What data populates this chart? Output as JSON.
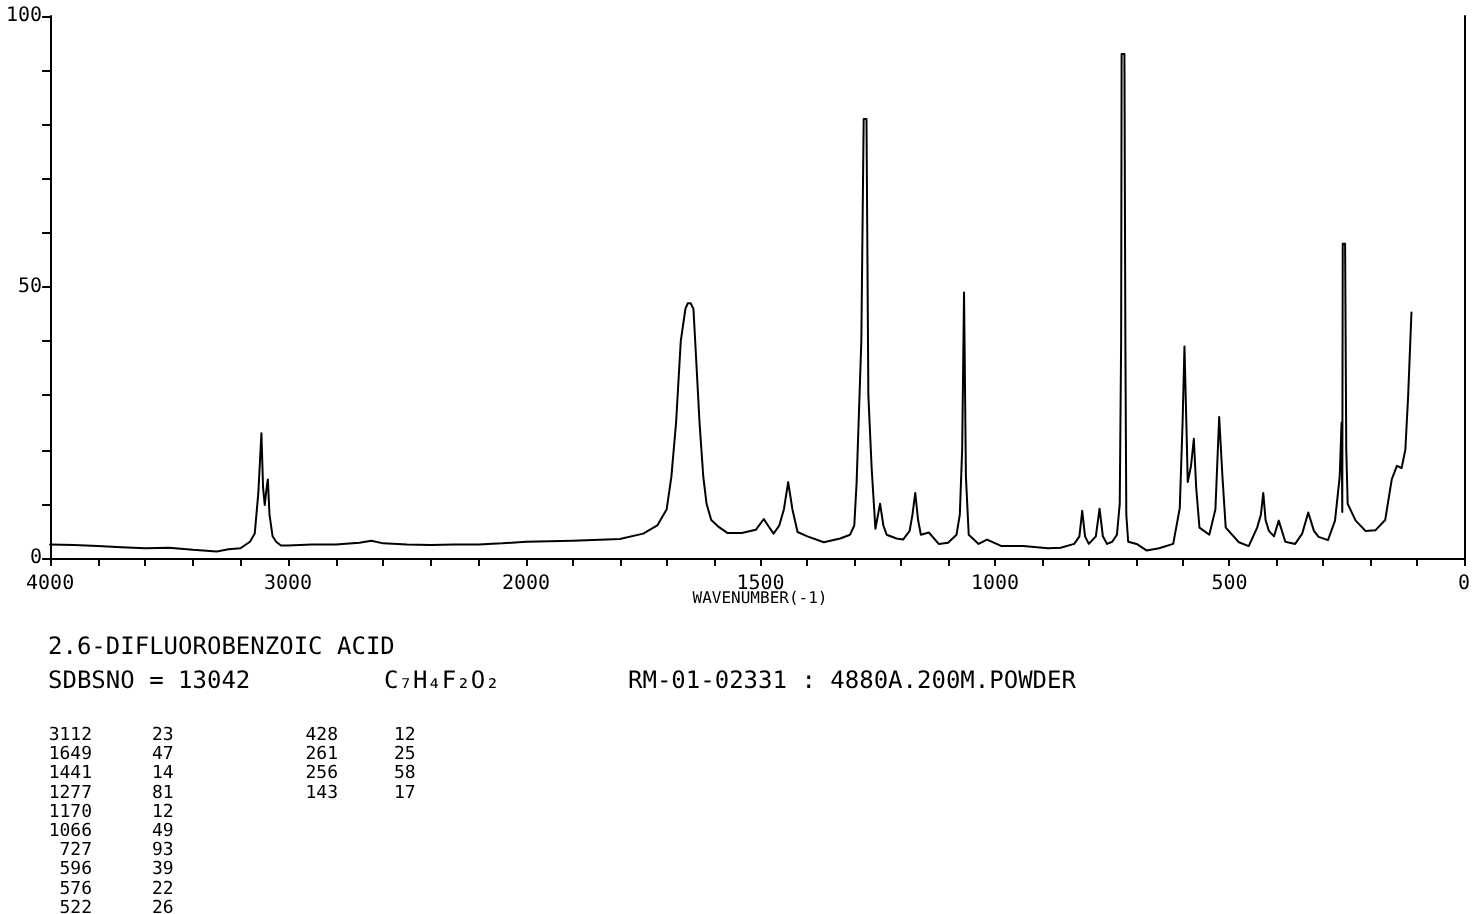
{
  "chart_data": [
    {
      "type": "line",
      "title": "2.6-DIFLUOROBENZOIC ACID",
      "annotations": [
        "SDBSNO = 13042",
        "C₇H₄F₂O₂",
        "RM-01-02331 : 4880A.200M.POWDER",
        "3112",
        "23",
        "1649",
        "47",
        "1441",
        "14",
        "1277",
        "81",
        "1170",
        "12",
        "1066",
        "49",
        "727",
        "93",
        "596",
        "39",
        "576",
        "22",
        "522",
        "26",
        "428",
        "12",
        "261",
        "25",
        "256",
        "58",
        "143",
        "17"
      ],
      "series": [
        {
          "color": "#000000",
          "x": [
            4000,
            3900,
            3800,
            3700,
            3600,
            3500,
            3400,
            3300,
            3250,
            3200,
            3160,
            3140,
            3125,
            3112,
            3105,
            3098,
            3090,
            3085,
            3078,
            3065,
            3050,
            3030,
            3000,
            2900,
            2800,
            2700,
            2650,
            2600,
            2500,
            2400,
            2300,
            2200,
            2100,
            2000
          ],
          "values": [
            2.5,
            2.4,
            2.2,
            2.0,
            1.8,
            1.9,
            1.5,
            1.2,
            1.6,
            1.8,
            3,
            4.5,
            12,
            23,
            13,
            9.8,
            13,
            14.5,
            8,
            4,
            3,
            2.3,
            2.3,
            2.5,
            2.5,
            2.8,
            3.2,
            2.7,
            2.5,
            2.4,
            2.5,
            2.5,
            2.7,
            3
          ]
        }
      ],
      "xlim": [
        4000,
        2000
      ],
      "xticks": [
        4000,
        {
          "value": 3800,
          "label": null
        },
        {
          "value": 3600,
          "label": null
        },
        {
          "value": 3400,
          "label": null
        },
        {
          "value": 3200,
          "label": null
        },
        3000,
        {
          "value": 2800,
          "label": null
        },
        {
          "value": 2600,
          "label": null
        },
        {
          "value": 2400,
          "label": null
        },
        {
          "value": 2200,
          "label": null
        },
        2000
      ],
      "ylim": [
        0,
        100
      ],
      "yticks": [
        0,
        {
          "value": 10,
          "label": null
        },
        {
          "value": 20,
          "label": null
        },
        {
          "value": 30,
          "label": null
        },
        {
          "value": 40,
          "label": null
        },
        50,
        {
          "value": 60,
          "label": null
        },
        {
          "value": 70,
          "label": null
        },
        {
          "value": 80,
          "label": null
        },
        {
          "value": 90,
          "label": null
        },
        100
      ],
      "grid": false,
      "marker": "none",
      "line_style": "solid"
    },
    {
      "type": "line",
      "xlabel": "WAVENUMBER(-1)",
      "series": [
        {
          "color": "#000000",
          "x": [
            2000,
            1900,
            1800,
            1750,
            1720,
            1700,
            1690,
            1680,
            1670,
            1660,
            1655,
            1649,
            1643,
            1638,
            1630,
            1622,
            1615,
            1605,
            1590,
            1570,
            1540,
            1510,
            1493,
            1480,
            1472,
            1460,
            1450,
            1441,
            1432,
            1421,
            1400,
            1365,
            1330,
            1309,
            1300,
            1295,
            1285,
            1280,
            1277,
            1274,
            1270,
            1263,
            1255,
            1245,
            1238,
            1231,
            1210,
            1196,
            1182,
            1176,
            1170,
            1164,
            1158,
            1141,
            1120,
            1100,
            1082,
            1075,
            1070,
            1066,
            1062,
            1056,
            1035,
            1017,
            986,
            940,
            887,
            860,
            831,
            820,
            814,
            808,
            800,
            785,
            777,
            770,
            761,
            750,
            740,
            734,
            731,
            730,
            727,
            724,
            722,
            720,
            716,
            698,
            677,
            650,
            620,
            606,
            600,
            596,
            592,
            589,
            582,
            576,
            571,
            564,
            543,
            530,
            522,
            515,
            508,
            480,
            459,
            441,
            433,
            428,
            423,
            416,
            405,
            395,
            381,
            360,
            345,
            332,
            320,
            310,
            290,
            275,
            265,
            261,
            259.5,
            258.5,
            256,
            253.5,
            251,
            248,
            231,
            210,
            189,
            168,
            154,
            143,
            133,
            125,
            119,
            112
          ],
          "values": [
            3,
            3.2,
            3.5,
            4.5,
            6,
            9,
            15,
            25,
            40,
            46,
            47,
            47,
            46,
            38,
            25,
            15,
            10,
            7,
            5.8,
            4.6,
            4.6,
            5.2,
            7.2,
            5.5,
            4.5,
            6,
            9,
            14,
            9,
            4.8,
            4,
            2.9,
            3.6,
            4.3,
            6,
            14,
            40,
            81,
            81,
            81,
            30,
            16.6,
            5.4,
            10,
            6,
            4.3,
            3.6,
            3.4,
            5,
            8,
            12,
            7,
            4.3,
            4.7,
            2.6,
            2.8,
            4.3,
            8,
            20,
            49,
            15,
            4.3,
            2.6,
            3.4,
            2.2,
            2.2,
            1.8,
            1.9,
            2.6,
            4,
            8.7,
            4,
            2.6,
            4,
            9.1,
            4,
            2.6,
            3,
            4.3,
            10,
            40,
            93,
            93,
            93,
            40,
            8,
            3,
            2.6,
            1.4,
            1.8,
            2.6,
            9.2,
            25,
            39,
            25,
            14,
            17,
            22,
            13,
            5.6,
            4.3,
            9,
            26,
            15,
            5.6,
            2.9,
            2.2,
            5.6,
            8,
            12,
            7,
            5,
            4,
            6.9,
            3,
            2.6,
            4.5,
            8.4,
            5,
            3.9,
            3.3,
            6.9,
            15,
            25,
            8.5,
            58,
            58,
            58,
            20,
            10,
            6.9,
            5,
            5.1,
            7,
            14.5,
            17,
            16.6,
            20,
            30,
            45.3
          ]
        }
      ],
      "xlim": [
        2000,
        0
      ],
      "xticks": [
        {
          "value": 1900,
          "label": null
        },
        {
          "value": 1800,
          "label": null
        },
        {
          "value": 1700,
          "label": null
        },
        {
          "value": 1600,
          "label": null
        },
        1500,
        {
          "value": 1400,
          "label": null
        },
        {
          "value": 1300,
          "label": null
        },
        {
          "value": 1200,
          "label": null
        },
        {
          "value": 1100,
          "label": null
        },
        1000,
        {
          "value": 900,
          "label": null
        },
        {
          "value": 800,
          "label": null
        },
        {
          "value": 700,
          "label": null
        },
        {
          "value": 600,
          "label": null
        },
        500,
        {
          "value": 400,
          "label": null
        },
        {
          "value": 300,
          "label": null
        },
        {
          "value": 200,
          "label": null
        },
        {
          "value": 100,
          "label": null
        },
        0
      ],
      "ylim": [
        0,
        100
      ],
      "yticks": [
        0,
        50,
        100
      ],
      "tick_labels": "x",
      "grid": false,
      "marker": "none",
      "line_style": "solid"
    }
  ]
}
